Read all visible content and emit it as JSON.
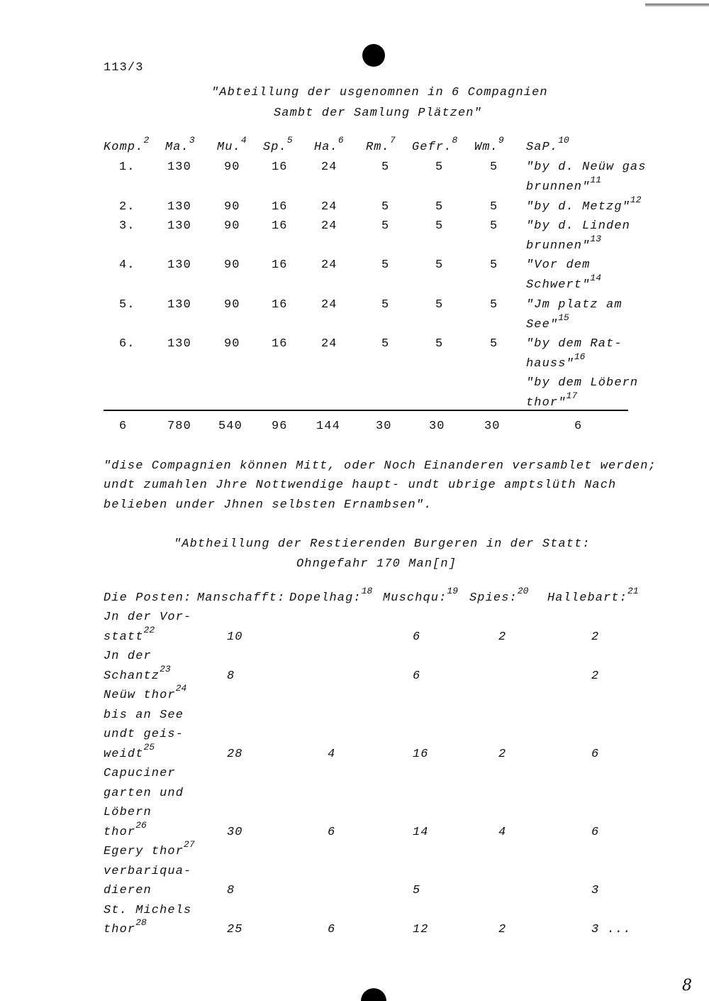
{
  "doc_id": "113/3",
  "page_number": "8",
  "title1": [
    "\"Abteillung der usgenomnen in 6 Compagnien",
    "Sambt der Samlung Plätzen\""
  ],
  "table1": {
    "headers": [
      {
        "text": "Komp.",
        "note": "2"
      },
      {
        "text": "Ma.",
        "note": "3"
      },
      {
        "text": "Mu.",
        "note": "4"
      },
      {
        "text": "Sp.",
        "note": "5"
      },
      {
        "text": "Ha.",
        "note": "6"
      },
      {
        "text": "Rm.",
        "note": "7"
      },
      {
        "text": "Gefr.",
        "note": "8"
      },
      {
        "text": "Wm.",
        "note": "9"
      },
      {
        "text": "SaP.",
        "note": "10"
      }
    ],
    "rows": [
      {
        "values": [
          "1.",
          "130",
          "90",
          "16",
          "24",
          "5",
          "5",
          "5"
        ],
        "place": [
          {
            "text": "\"by d. Neüw gas",
            "note": ""
          },
          {
            "text": "brunnen\"",
            "note": "11"
          }
        ]
      },
      {
        "values": [
          "2.",
          "130",
          "90",
          "16",
          "24",
          "5",
          "5",
          "5"
        ],
        "place": [
          {
            "text": "\"by d. Metzg\"",
            "note": "12"
          }
        ]
      },
      {
        "values": [
          "3.",
          "130",
          "90",
          "16",
          "24",
          "5",
          "5",
          "5"
        ],
        "place": [
          {
            "text": "\"by d. Linden",
            "note": ""
          },
          {
            "text": "brunnen\"",
            "note": "13"
          }
        ]
      },
      {
        "values": [
          "4.",
          "130",
          "90",
          "16",
          "24",
          "5",
          "5",
          "5"
        ],
        "place": [
          {
            "text": "\"Vor dem",
            "note": ""
          },
          {
            "text": "Schwert\"",
            "note": "14"
          }
        ]
      },
      {
        "values": [
          "5.",
          "130",
          "90",
          "16",
          "24",
          "5",
          "5",
          "5"
        ],
        "place": [
          {
            "text": "\"Jm platz am",
            "note": ""
          },
          {
            "text": "See\"",
            "note": "15"
          }
        ]
      },
      {
        "values": [
          "6.",
          "130",
          "90",
          "16",
          "24",
          "5",
          "5",
          "5"
        ],
        "place": [
          {
            "text": "\"by dem Rat-",
            "note": ""
          },
          {
            "text": "hauss\"",
            "note": "16"
          }
        ]
      },
      {
        "values": [
          "",
          "",
          "",
          "",
          "",
          "",
          "",
          ""
        ],
        "place": [
          {
            "text": "\"by dem Löbern",
            "note": ""
          },
          {
            "text": "thor\"",
            "note": "17"
          }
        ]
      }
    ],
    "totals": [
      "6",
      "780",
      "540",
      "96",
      "144",
      "30",
      "30",
      "30",
      "6"
    ]
  },
  "paragraph": [
    "\"dise Compagnien können Mitt, oder Noch Einanderen versamblet werden;",
    "undt zumahlen Jhre Nottwendige haupt- undt ubrige amptslüth Nach",
    "belieben under Jhnen selbsten Ernambsen\"."
  ],
  "title2": [
    "\"Abtheillung der Restierenden Burgeren in der Statt:",
    "Ohngefahr 170 Man[n]"
  ],
  "table2": {
    "headers": [
      {
        "text": "Die Posten:",
        "note": ""
      },
      {
        "text": "Manschafft:",
        "note": ""
      },
      {
        "text": "Dopelhag:",
        "note": "18"
      },
      {
        "text": "Muschqu:",
        "note": "19"
      },
      {
        "text": "Spies:",
        "note": "20"
      },
      {
        "text": "Hallebart:",
        "note": "21"
      }
    ],
    "rows": [
      {
        "label": [
          {
            "text": "Jn der Vor-",
            "note": ""
          },
          {
            "text": "statt",
            "note": "22"
          }
        ],
        "values": [
          "10",
          "",
          "6",
          "2",
          "2"
        ]
      },
      {
        "label": [
          {
            "text": "Jn der",
            "note": ""
          },
          {
            "text": "Schantz",
            "note": "23"
          }
        ],
        "values": [
          "8",
          "",
          "6",
          "",
          "2"
        ]
      },
      {
        "label": [
          {
            "text": "Neüw thor",
            "note": "24"
          },
          {
            "text": "bis an See",
            "note": ""
          },
          {
            "text": "undt geis-",
            "note": ""
          },
          {
            "text": "weidt",
            "note": "25"
          }
        ],
        "values": [
          "28",
          "4",
          "16",
          "2",
          "6"
        ]
      },
      {
        "label": [
          {
            "text": "Capuciner",
            "note": ""
          },
          {
            "text": "garten und",
            "note": ""
          },
          {
            "text": "Löbern",
            "note": ""
          },
          {
            "text": "thor",
            "note": "26"
          }
        ],
        "values": [
          "30",
          "6",
          "14",
          "4",
          "6"
        ]
      },
      {
        "label": [
          {
            "text": "Egery thor",
            "note": "27"
          },
          {
            "text": "verbariqua-",
            "note": ""
          },
          {
            "text": "dieren",
            "note": ""
          }
        ],
        "values": [
          "8",
          "",
          "5",
          "",
          "3"
        ]
      },
      {
        "label": [
          {
            "text": "St. Michels",
            "note": ""
          },
          {
            "text": "thor",
            "note": "28"
          }
        ],
        "values": [
          "25",
          "6",
          "12",
          "2",
          "3 ..."
        ]
      }
    ]
  }
}
